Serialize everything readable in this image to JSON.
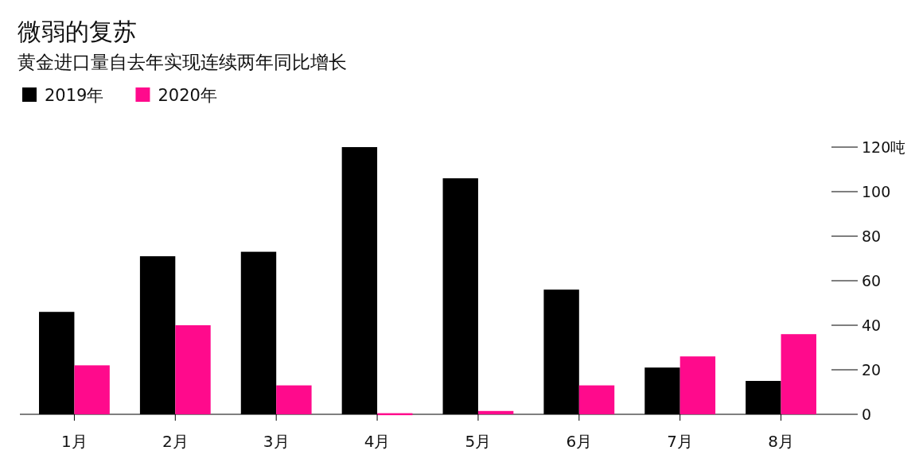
{
  "chart_data": {
    "type": "bar",
    "title": "微弱的复苏",
    "subtitle": "黄金进口量自去年实现连续两年同比增长",
    "categories": [
      "1月",
      "2月",
      "3月",
      "4月",
      "5月",
      "6月",
      "7月",
      "8月"
    ],
    "series": [
      {
        "name": "2019年",
        "color": "#000000",
        "values": [
          46,
          71,
          73,
          120,
          106,
          56,
          21,
          15
        ]
      },
      {
        "name": "2020年",
        "color": "#ff0a8c",
        "values": [
          22,
          40,
          13,
          0.5,
          1.5,
          13,
          26,
          36
        ]
      }
    ],
    "ylim": [
      0,
      120
    ],
    "yticks": [
      0,
      20,
      40,
      60,
      80,
      100,
      {
        "value": 120,
        "label": "120吨"
      }
    ],
    "legend": "top left",
    "grid": false
  }
}
